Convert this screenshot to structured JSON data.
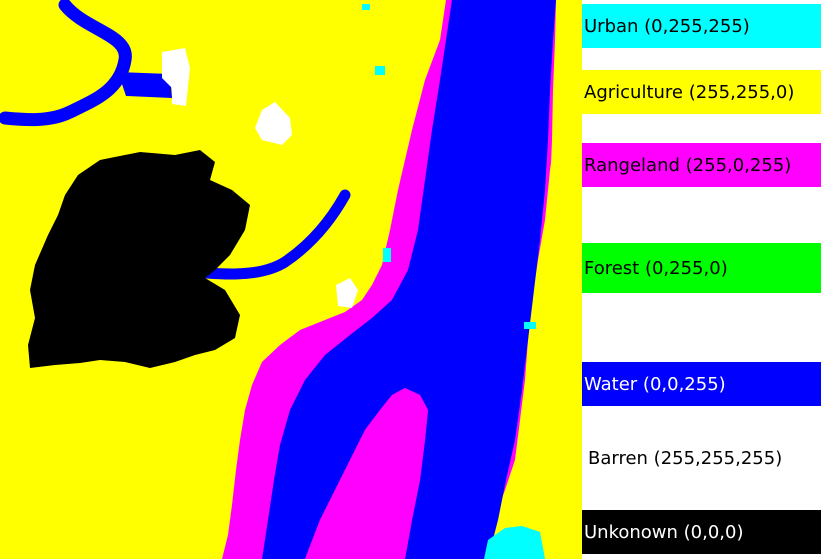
{
  "legend": {
    "items": [
      {
        "key": "urban",
        "label": "Urban (0,255,255)",
        "color": "#00ffff",
        "text_color": "#000000"
      },
      {
        "key": "agriculture",
        "label": "Agriculture (255,255,0)",
        "color": "#ffff00",
        "text_color": "#000000"
      },
      {
        "key": "rangeland",
        "label": "Rangeland (255,0,255)",
        "color": "#ff00ff",
        "text_color": "#000000"
      },
      {
        "key": "forest",
        "label": "Forest (0,255,0)",
        "color": "#00ff00",
        "text_color": "#000000"
      },
      {
        "key": "water",
        "label": "Water (0,0,255)",
        "color": "#0000ff",
        "text_color": "#ffffff"
      },
      {
        "key": "barren",
        "label": "Barren (255,255,255)",
        "color": "#ffffff",
        "text_color": "#000000"
      },
      {
        "key": "unknown",
        "label": "Unkonown (0,0,0)",
        "color": "#000000",
        "text_color": "#ffffff"
      }
    ]
  }
}
